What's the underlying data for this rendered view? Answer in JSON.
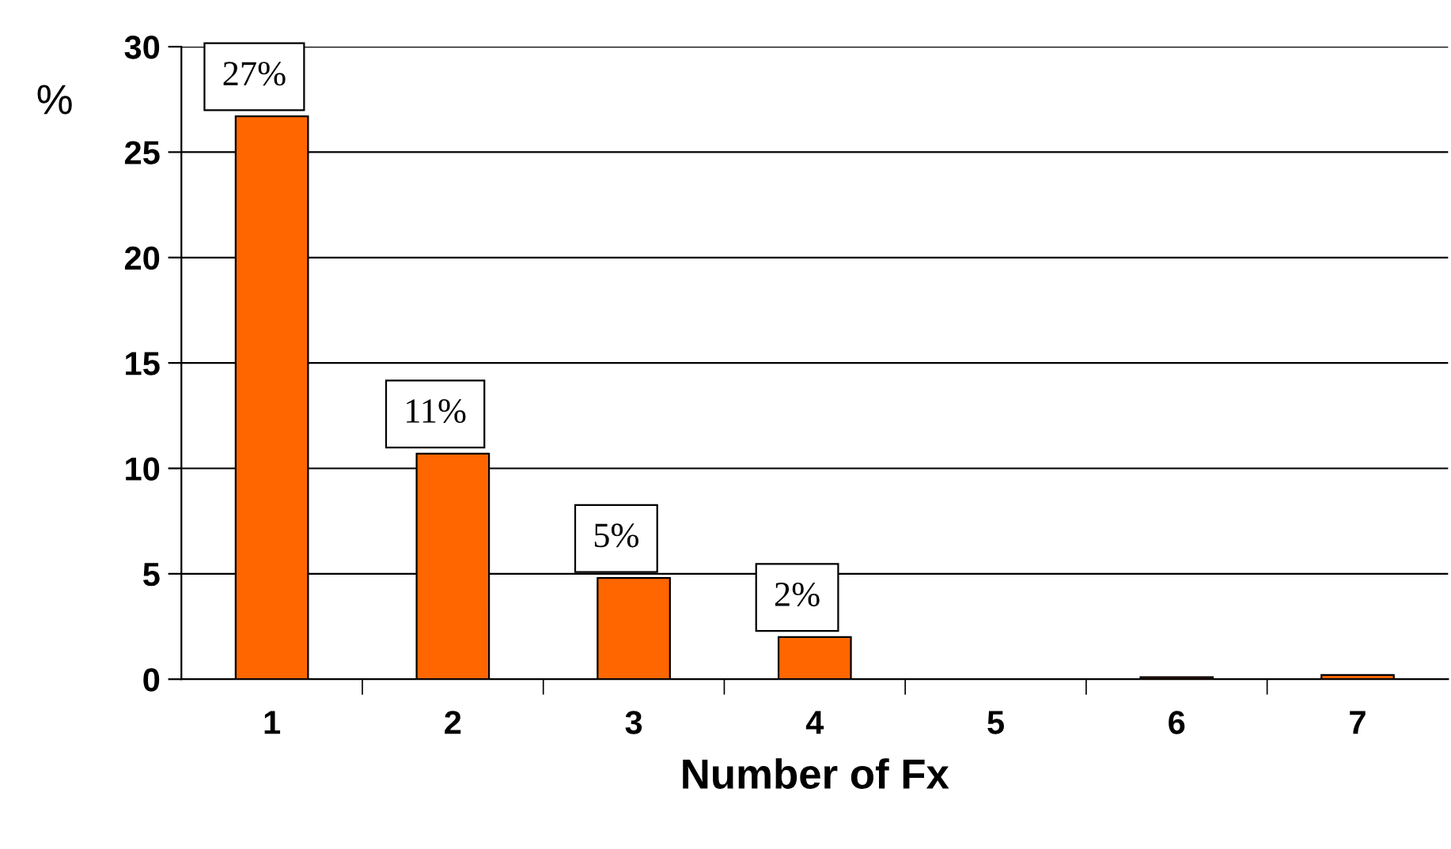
{
  "chart_data": {
    "type": "bar",
    "xlabel": "Number of Fx",
    "ylabel": "%",
    "categories": [
      "1",
      "2",
      "3",
      "4",
      "5",
      "6",
      "7"
    ],
    "values": [
      26.7,
      10.7,
      4.8,
      2.0,
      0,
      0.1,
      0.2
    ],
    "value_labels": [
      "27%",
      "11%",
      "5%",
      "2%",
      null,
      null,
      null
    ],
    "color": "#ff6600",
    "ylim": [
      0,
      30
    ],
    "yticks": [
      0,
      5,
      10,
      15,
      20,
      25,
      30
    ],
    "grid": "y"
  }
}
